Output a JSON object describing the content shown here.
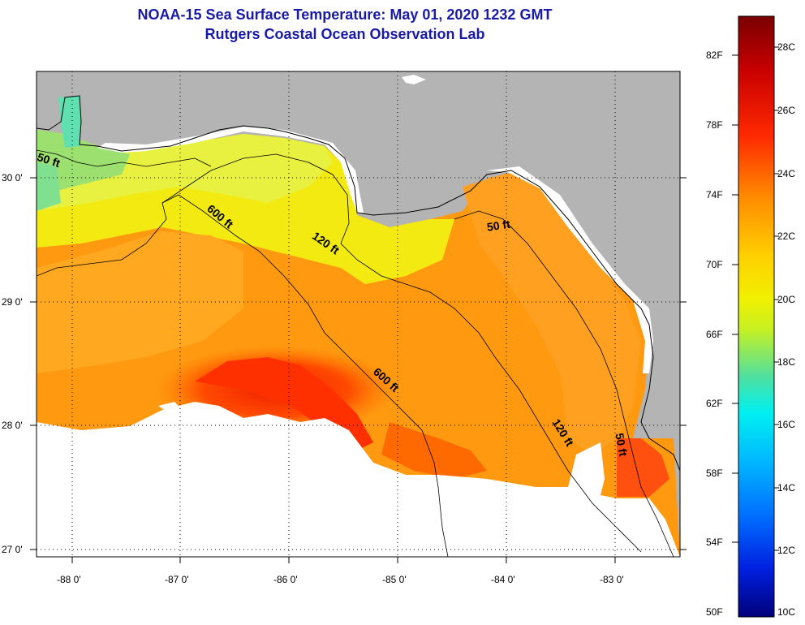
{
  "title": "NOAA-15 Sea Surface Temperature:  May 01, 2020 1232 GMT",
  "subtitle": "Rutgers Coastal Ocean Observation Lab",
  "map": {
    "lon_ticks": [
      "-88 0'",
      "-87 0'",
      "-86 0'",
      "-85 0'",
      "-84 0'",
      "-83 0'"
    ],
    "lat_ticks": [
      "30 0'",
      "29 0'",
      "28 0'",
      "27 0'"
    ],
    "contour_labels": [
      "50 ft",
      "600 ft",
      "120 ft",
      "50 ft",
      "600 ft",
      "120 ft",
      "50 ft"
    ],
    "land_color": "#b4b4b4",
    "cloud_color": "#ffffff"
  },
  "colorbar": {
    "fahrenheit": [
      "82F",
      "78F",
      "74F",
      "70F",
      "66F",
      "62F",
      "58F",
      "54F",
      "50F"
    ],
    "celsius": [
      "28C",
      "26C",
      "24C",
      "22C",
      "20C",
      "18C",
      "16C",
      "14C",
      "12C",
      "10C"
    ],
    "colors": [
      "#7a0000",
      "#e00000",
      "#ff4000",
      "#ff9a00",
      "#ffd800",
      "#e8f000",
      "#7ae870",
      "#00e8e0",
      "#00a0ff",
      "#0040ff",
      "#0000c0",
      "#00007a"
    ]
  }
}
